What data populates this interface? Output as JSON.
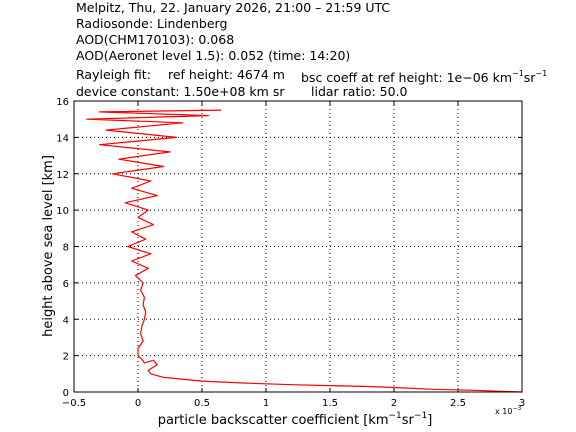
{
  "header": {
    "line1": "Melpitz, Thu, 22. January 2026, 21:00 – 21:59 UTC",
    "line2": "Radiosonde: Lindenberg",
    "line3": "AOD(CHM170103): 0.068",
    "line4": "AOD(Aeronet level 1.5): 0.052   (time: 14:20)",
    "rayleigh_label": "Rayleigh fit:",
    "ref_height": "ref height: 4674 m",
    "bsc_coeff_prefix": "bsc coeff at ref height: 1e−06 km",
    "bsc_coeff_sup1": "−1",
    "bsc_coeff_mid": "sr",
    "bsc_coeff_sup2": "−1",
    "device_constant": "device constant: 1.50e+08 km sr",
    "lidar_ratio": "lidar ratio: 50.0"
  },
  "chart_data": {
    "type": "line",
    "xlabel_prefix": "particle backscatter coefficient [km",
    "xlabel_sup1": "−1",
    "xlabel_mid": "sr",
    "xlabel_sup2": "−1",
    "xlabel_suffix": "]",
    "ylabel": "height above sea level [km]",
    "x_scale_note": "x 10",
    "x_scale_exp": "−3",
    "xlim": [
      -0.5,
      3
    ],
    "ylim": [
      0,
      16
    ],
    "xticks": [
      -0.5,
      0,
      0.5,
      1,
      1.5,
      2,
      2.5,
      3
    ],
    "xtick_labels": [
      "−0.5",
      "0",
      "0.5",
      "1",
      "1.5",
      "2",
      "2.5",
      "3"
    ],
    "yticks": [
      0,
      2,
      4,
      6,
      8,
      10,
      12,
      14,
      16
    ],
    "ytick_labels": [
      "0",
      "2",
      "4",
      "6",
      "8",
      "10",
      "12",
      "14",
      "16"
    ],
    "grid": true,
    "series_color": "#ff0000",
    "series": [
      {
        "x": [
          3.0,
          2.6,
          2.3,
          2.0,
          1.8,
          1.5,
          1.2,
          1.0,
          0.8,
          0.5,
          0.2,
          0.1,
          0.08,
          0.15,
          0.12,
          0.05,
          0.03,
          0.0,
          0.0,
          0.04,
          0.02,
          0.03,
          0.05,
          0.06,
          0.04,
          0.05,
          0.02,
          0.04,
          -0.02,
          0.08,
          -0.05,
          0.1,
          -0.08,
          0.06,
          -0.05,
          0.12,
          0.0,
          0.08,
          -0.1,
          0.15,
          -0.05,
          0.1,
          -0.2,
          0.2,
          -0.15,
          0.25,
          -0.3,
          0.3,
          -0.25,
          0.35,
          -0.4,
          0.55,
          -0.3,
          0.65
        ],
        "y": [
          0.0,
          0.1,
          0.15,
          0.25,
          0.3,
          0.35,
          0.4,
          0.45,
          0.5,
          0.6,
          0.8,
          1.0,
          1.2,
          1.5,
          1.75,
          1.6,
          1.8,
          2.0,
          2.4,
          2.8,
          3.2,
          3.6,
          4.0,
          4.4,
          4.8,
          5.2,
          5.6,
          6.0,
          6.4,
          6.8,
          7.2,
          7.6,
          8.0,
          8.4,
          8.8,
          9.2,
          9.6,
          10.0,
          10.4,
          10.8,
          11.2,
          11.6,
          12.0,
          12.4,
          12.8,
          13.2,
          13.6,
          14.0,
          14.4,
          14.8,
          15.0,
          15.2,
          15.4,
          15.5
        ]
      }
    ]
  }
}
